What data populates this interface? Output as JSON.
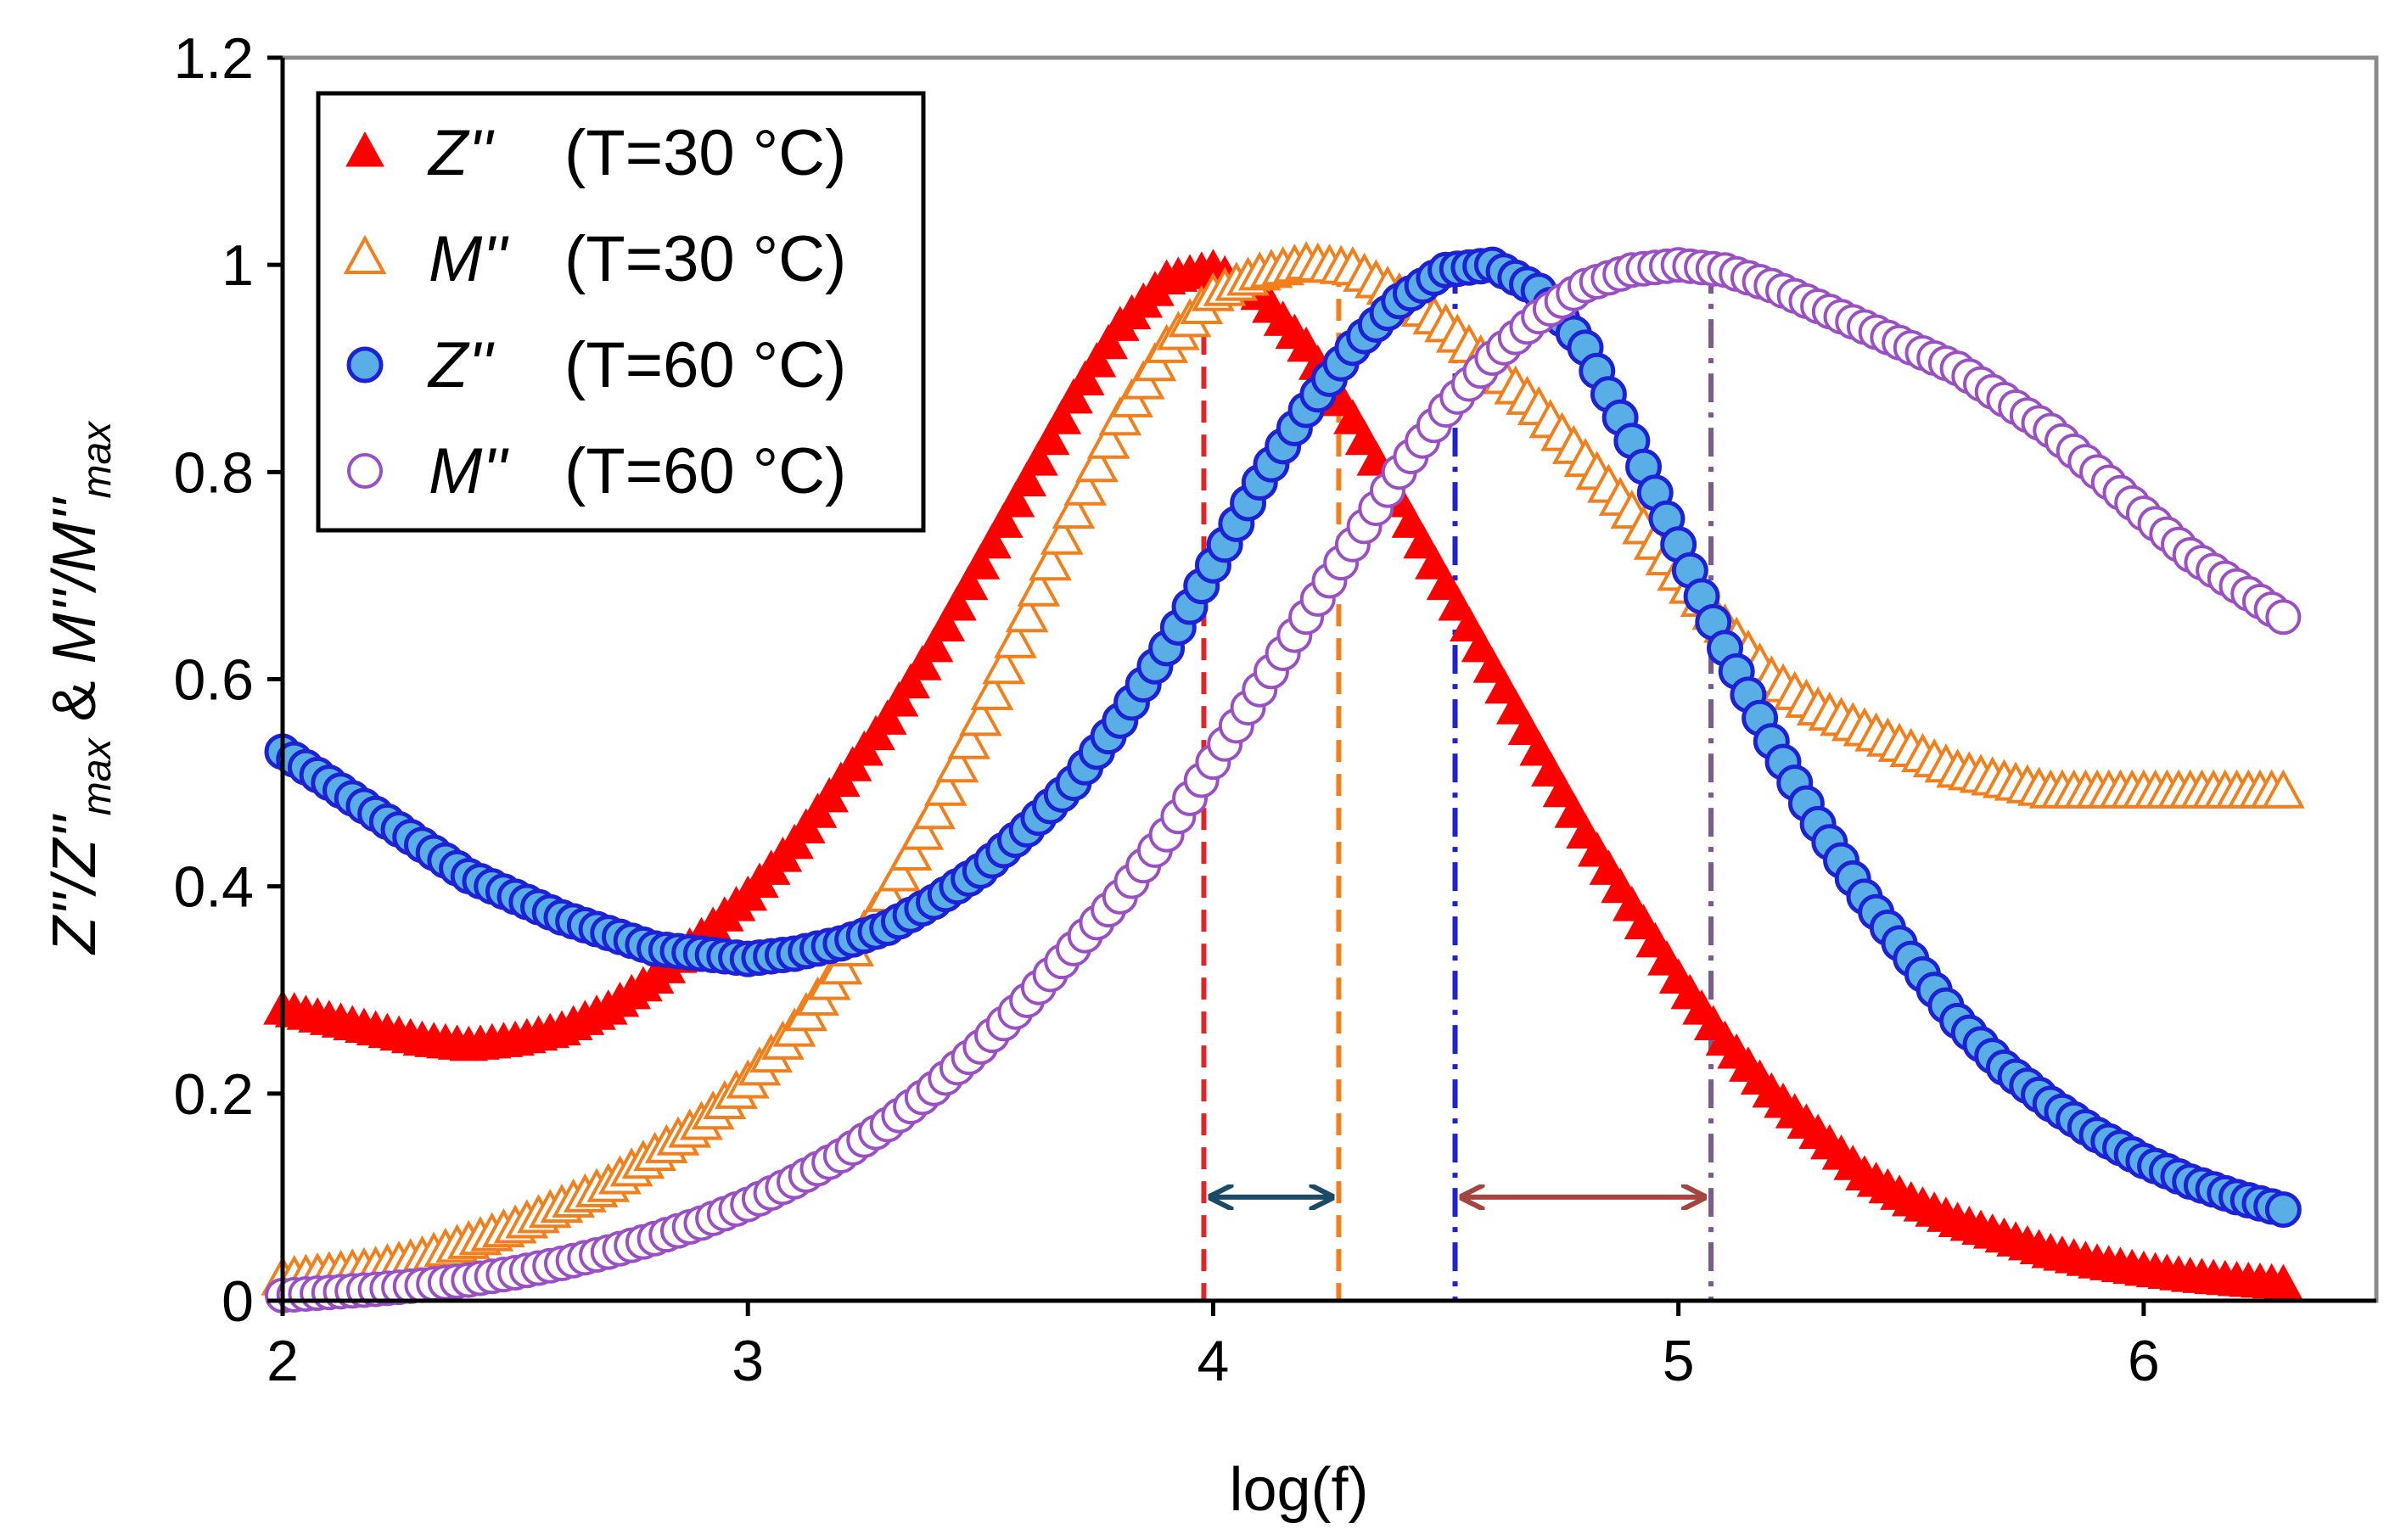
{
  "chart_data": {
    "type": "scatter",
    "title": "",
    "xlabel": "log(f)",
    "ylabel": {
      "part1_main": "Z''/Z''",
      "part1_sub": "max",
      "amp": "&",
      "part2_main": "M''/M''",
      "part2_sub": "max"
    },
    "xlim": [
      2,
      6.5
    ],
    "ylim": [
      0,
      1.2
    ],
    "xticks": [
      2,
      3,
      4,
      5,
      6
    ],
    "xtick_labels": [
      "2",
      "3",
      "4",
      "5",
      "6"
    ],
    "yticks": [
      0,
      0.2,
      0.4,
      0.6,
      0.8,
      1,
      1.2
    ],
    "ytick_labels": [
      "0",
      "0.2",
      "0.4",
      "0.6",
      "0.8",
      "1",
      "1.2"
    ],
    "grid": false,
    "legend_position": "top-left",
    "series": [
      {
        "name": "Z'' (T=30 °C)",
        "symbol": "Z''",
        "condition": "(T=30 °C)",
        "marker": "triangle-filled",
        "color": "#ff0000",
        "x": [
          2.0,
          2.1,
          2.2,
          2.3,
          2.4,
          2.5,
          2.6,
          2.7,
          2.8,
          2.9,
          3.0,
          3.1,
          3.2,
          3.3,
          3.4,
          3.5,
          3.6,
          3.7,
          3.8,
          3.9,
          4.0,
          4.1,
          4.2,
          4.3,
          4.4,
          4.5,
          4.6,
          4.7,
          4.8,
          4.9,
          5.0,
          5.1,
          5.2,
          5.3,
          5.4,
          5.5,
          5.6,
          5.7,
          5.8,
          5.9,
          6.0,
          6.1,
          6.2,
          6.3
        ],
        "y": [
          0.28,
          0.27,
          0.26,
          0.25,
          0.245,
          0.25,
          0.26,
          0.28,
          0.31,
          0.35,
          0.39,
          0.44,
          0.5,
          0.56,
          0.63,
          0.71,
          0.79,
          0.87,
          0.94,
          0.985,
          0.995,
          0.97,
          0.92,
          0.85,
          0.77,
          0.69,
          0.61,
          0.53,
          0.45,
          0.38,
          0.31,
          0.25,
          0.2,
          0.16,
          0.12,
          0.095,
          0.075,
          0.06,
          0.045,
          0.035,
          0.028,
          0.022,
          0.018,
          0.015
        ]
      },
      {
        "name": "M'' (T=30 °C)",
        "symbol": "M''",
        "condition": "(T=30 °C)",
        "marker": "triangle-open",
        "color": "#f07f1c",
        "x": [
          2.0,
          2.1,
          2.2,
          2.3,
          2.4,
          2.5,
          2.6,
          2.7,
          2.8,
          2.9,
          3.0,
          3.1,
          3.2,
          3.3,
          3.4,
          3.5,
          3.6,
          3.7,
          3.8,
          3.9,
          4.0,
          4.1,
          4.2,
          4.3,
          4.4,
          4.5,
          4.6,
          4.7,
          4.8,
          4.9,
          5.0,
          5.1,
          5.2,
          5.3,
          5.4,
          5.5,
          5.6,
          5.7,
          5.8,
          5.9,
          6.0,
          6.1,
          6.2,
          6.3
        ],
        "y": [
          0.02,
          0.025,
          0.03,
          0.04,
          0.055,
          0.07,
          0.09,
          0.11,
          0.14,
          0.17,
          0.21,
          0.26,
          0.32,
          0.39,
          0.47,
          0.56,
          0.66,
          0.76,
          0.85,
          0.92,
          0.97,
          0.99,
          1.0,
          0.995,
          0.97,
          0.94,
          0.9,
          0.86,
          0.81,
          0.76,
          0.7,
          0.65,
          0.6,
          0.57,
          0.55,
          0.53,
          0.51,
          0.5,
          0.49,
          0.49,
          0.49,
          0.49,
          0.49,
          0.49
        ]
      },
      {
        "name": "Z'' (T=60 °C)",
        "symbol": "Z''",
        "condition": "(T=60 °C)",
        "marker": "circle-filled",
        "color": "#1e22d6",
        "fill": "#5aaee6",
        "x": [
          2.0,
          2.1,
          2.2,
          2.3,
          2.4,
          2.5,
          2.6,
          2.7,
          2.8,
          2.9,
          3.0,
          3.1,
          3.2,
          3.3,
          3.4,
          3.5,
          3.6,
          3.7,
          3.8,
          3.9,
          4.0,
          4.1,
          4.2,
          4.3,
          4.4,
          4.5,
          4.6,
          4.7,
          4.8,
          4.9,
          5.0,
          5.1,
          5.2,
          5.3,
          5.4,
          5.5,
          5.6,
          5.7,
          5.8,
          5.9,
          6.0,
          6.1,
          6.2,
          6.3
        ],
        "y": [
          0.53,
          0.5,
          0.47,
          0.44,
          0.41,
          0.39,
          0.37,
          0.355,
          0.34,
          0.335,
          0.33,
          0.335,
          0.345,
          0.36,
          0.385,
          0.415,
          0.455,
          0.5,
          0.56,
          0.63,
          0.71,
          0.79,
          0.86,
          0.92,
          0.965,
          0.995,
          1.0,
          0.975,
          0.92,
          0.83,
          0.73,
          0.63,
          0.54,
          0.46,
          0.39,
          0.33,
          0.27,
          0.225,
          0.19,
          0.16,
          0.135,
          0.115,
          0.1,
          0.088
        ]
      },
      {
        "name": "M'' (T=60 °C)",
        "symbol": "M''",
        "condition": "(T=60 °C)",
        "marker": "circle-open",
        "color": "#9b4fc4",
        "x": [
          2.0,
          2.1,
          2.2,
          2.3,
          2.4,
          2.5,
          2.6,
          2.7,
          2.8,
          2.9,
          3.0,
          3.1,
          3.2,
          3.3,
          3.4,
          3.5,
          3.6,
          3.7,
          3.8,
          3.9,
          4.0,
          4.1,
          4.2,
          4.3,
          4.4,
          4.5,
          4.6,
          4.7,
          4.8,
          4.9,
          5.0,
          5.1,
          5.2,
          5.3,
          5.4,
          5.5,
          5.6,
          5.7,
          5.8,
          5.9,
          6.0,
          6.1,
          6.2,
          6.3
        ],
        "y": [
          0.005,
          0.008,
          0.011,
          0.015,
          0.02,
          0.027,
          0.036,
          0.047,
          0.06,
          0.075,
          0.093,
          0.115,
          0.14,
          0.17,
          0.205,
          0.245,
          0.29,
          0.34,
          0.39,
          0.45,
          0.52,
          0.59,
          0.66,
          0.73,
          0.8,
          0.86,
          0.91,
          0.95,
          0.98,
          0.995,
          1.0,
          0.995,
          0.98,
          0.96,
          0.94,
          0.92,
          0.9,
          0.87,
          0.84,
          0.8,
          0.76,
          0.72,
          0.69,
          0.66
        ]
      }
    ],
    "reference_lines": [
      {
        "name": "peak-z30",
        "x": 3.98,
        "color": "#e0242a",
        "dash": "dashed"
      },
      {
        "name": "peak-m30",
        "x": 4.27,
        "color": "#f07f1c",
        "dash": "dashed"
      },
      {
        "name": "peak-z60",
        "x": 4.52,
        "color": "#1e22d6",
        "dash": "dash-dot"
      },
      {
        "name": "peak-m60",
        "x": 5.07,
        "color": "#7a5a90",
        "dash": "dash-dot"
      }
    ],
    "arrows": [
      {
        "name": "shift-30",
        "x_from": 3.98,
        "x_to": 4.27,
        "y": 0.1,
        "color": "#1a4a66"
      },
      {
        "name": "shift-60",
        "x_from": 4.52,
        "x_to": 5.07,
        "y": 0.1,
        "color": "#a5453f"
      }
    ]
  }
}
